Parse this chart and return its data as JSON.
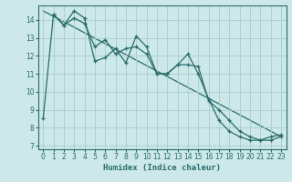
{
  "xlabel": "Humidex (Indice chaleur)",
  "bg_color": "#cce8e8",
  "grid_color": "#aacccc",
  "line_color": "#2a6b6b",
  "xlim": [
    -0.5,
    23.5
  ],
  "ylim": [
    6.8,
    14.8
  ],
  "xticks": [
    0,
    1,
    2,
    3,
    4,
    5,
    6,
    7,
    8,
    9,
    10,
    11,
    12,
    13,
    14,
    15,
    16,
    17,
    18,
    19,
    20,
    21,
    22,
    23
  ],
  "yticks": [
    7,
    8,
    9,
    10,
    11,
    12,
    13,
    14
  ],
  "series1_x": [
    0,
    1,
    2,
    3,
    4,
    5,
    6,
    7,
    8,
    9,
    10,
    11,
    12,
    13,
    14,
    15,
    16,
    17,
    18,
    19,
    20,
    21,
    22,
    23
  ],
  "series1_y": [
    8.5,
    14.3,
    13.7,
    14.5,
    14.1,
    11.7,
    11.9,
    12.4,
    11.6,
    13.1,
    12.5,
    11.0,
    11.0,
    11.5,
    11.5,
    11.4,
    9.5,
    9.0,
    8.4,
    7.8,
    7.5,
    7.3,
    7.3,
    7.5
  ],
  "series2_x": [
    1,
    2,
    3,
    4,
    5,
    6,
    7,
    8,
    9,
    10,
    11,
    12,
    13,
    14,
    15,
    16,
    17,
    18,
    19,
    20,
    21,
    22,
    23
  ],
  "series2_y": [
    14.3,
    13.7,
    14.1,
    13.8,
    12.5,
    12.9,
    12.1,
    12.4,
    12.5,
    12.1,
    11.0,
    11.0,
    11.5,
    12.1,
    11.0,
    9.6,
    8.4,
    7.8,
    7.5,
    7.3,
    7.3,
    7.5,
    7.6
  ],
  "trend_x": [
    0,
    23
  ],
  "trend_y": [
    14.5,
    7.5
  ]
}
